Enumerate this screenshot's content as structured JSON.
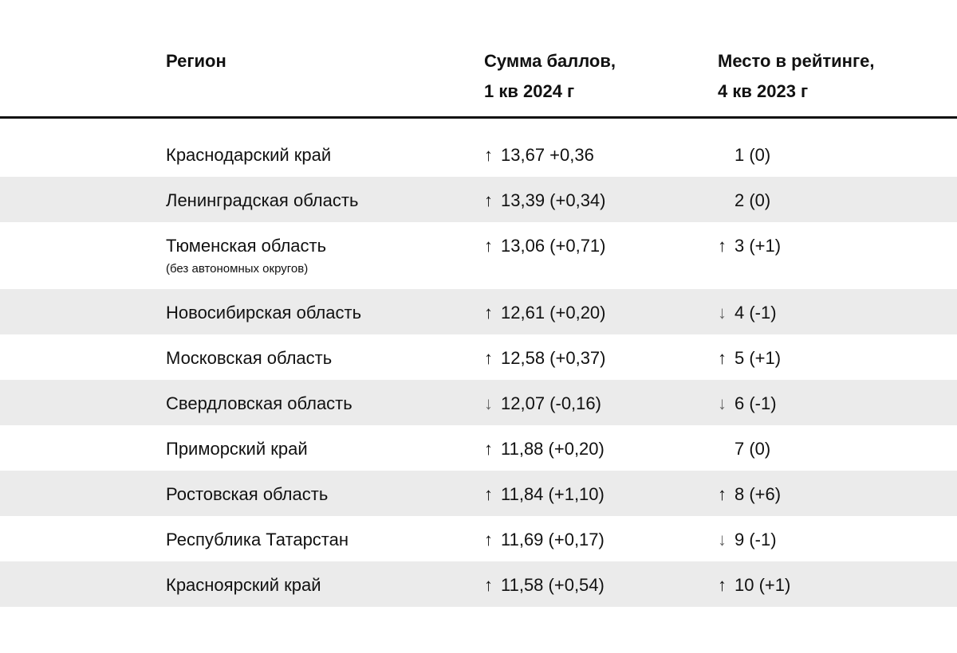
{
  "header": {
    "region": "Регион",
    "score_line1": "Сумма баллов,",
    "score_line2": "1 кв 2024 г",
    "rank_line1": "Место в рейтинге,",
    "rank_line2": "4 кв 2023 г"
  },
  "rows": [
    {
      "region": "Краснодарский край",
      "sub": "",
      "score_arrow": "↑",
      "score": "13,67 +0,36",
      "rank_arrow": "",
      "rank": "1 (0)"
    },
    {
      "region": "Ленинградская область",
      "sub": "",
      "score_arrow": "↑",
      "score": "13,39 (+0,34)",
      "rank_arrow": "",
      "rank": "2 (0)"
    },
    {
      "region": "Тюменская область",
      "sub": "(без автономных округов)",
      "score_arrow": "↑",
      "score": "13,06 (+0,71)",
      "rank_arrow": "↑",
      "rank": "3 (+1)"
    },
    {
      "region": "Новосибирская область",
      "sub": "",
      "score_arrow": "↑",
      "score": "12,61 (+0,20)",
      "rank_arrow": "↓",
      "rank": "4 (-1)"
    },
    {
      "region": "Московская область",
      "sub": "",
      "score_arrow": "↑",
      "score": "12,58 (+0,37)",
      "rank_arrow": "↑",
      "rank": "5 (+1)"
    },
    {
      "region": "Свердловская область",
      "sub": "",
      "score_arrow": "↓",
      "score": "12,07 (-0,16)",
      "rank_arrow": "↓",
      "rank": "6 (-1)"
    },
    {
      "region": "Приморский край",
      "sub": "",
      "score_arrow": "↑",
      "score": "11,88 (+0,20)",
      "rank_arrow": "",
      "rank": "7 (0)"
    },
    {
      "region": "Ростовская область",
      "sub": "",
      "score_arrow": "↑",
      "score": "11,84 (+1,10)",
      "rank_arrow": "↑",
      "rank": "8 (+6)"
    },
    {
      "region": "Республика Татарстан",
      "sub": "",
      "score_arrow": "↑",
      "score": "11,69 (+0,17)",
      "rank_arrow": "↓",
      "rank": "9 (-1)"
    },
    {
      "region": "Красноярский край",
      "sub": "",
      "score_arrow": "↑",
      "score": "11,58 (+0,54)",
      "rank_arrow": "↑",
      "rank": "10 (+1)"
    }
  ]
}
